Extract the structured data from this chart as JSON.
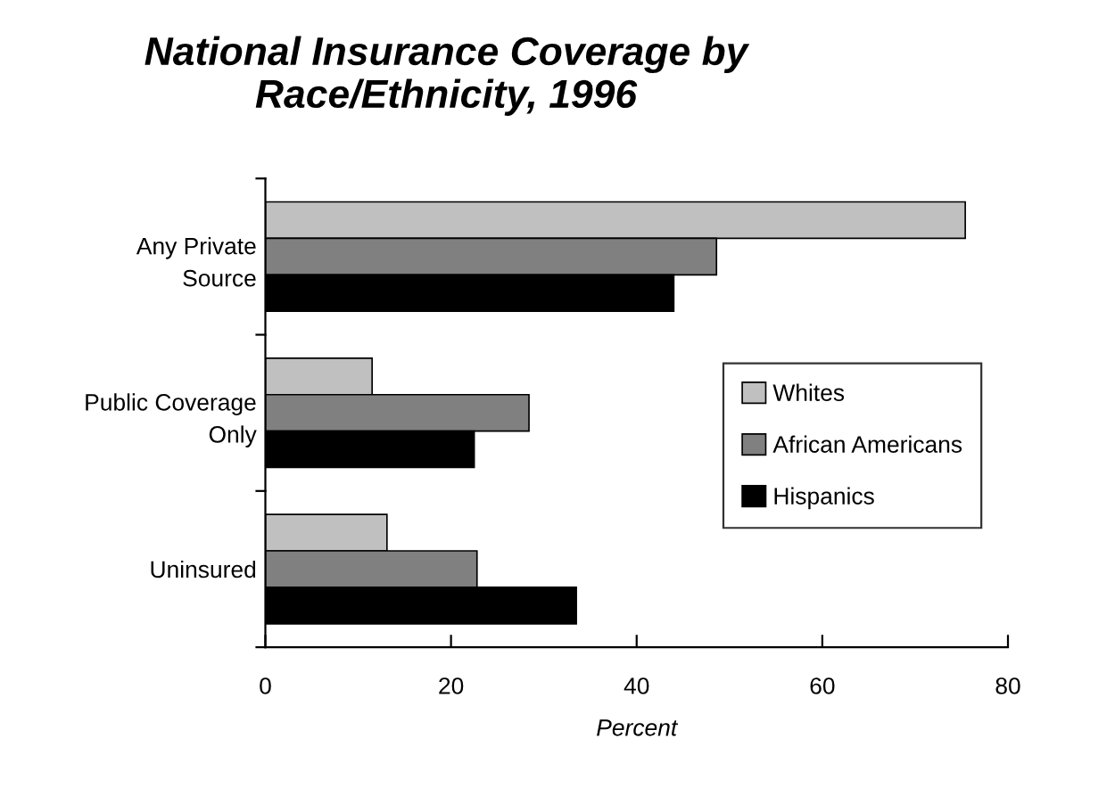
{
  "chart_data": {
    "type": "bar",
    "orientation": "horizontal",
    "title": "National Insurance Coverage by\nRace/Ethnicity, 1996",
    "xlabel": "Percent",
    "categories": [
      "Any Private\nSource",
      "Public Coverage\nOnly",
      "Uninsured"
    ],
    "series": [
      {
        "name": "Whites",
        "color": "#c0c0c0",
        "values": [
          75.4,
          11.5,
          13.1
        ]
      },
      {
        "name": "African Americans",
        "color": "#808080",
        "values": [
          48.6,
          28.4,
          22.8
        ]
      },
      {
        "name": "Hispanics",
        "color": "#000000",
        "values": [
          44.0,
          22.5,
          33.5
        ]
      }
    ],
    "xlim": [
      0,
      80
    ],
    "xticks": [
      0,
      20,
      40,
      60,
      80
    ],
    "grid": false,
    "legend": "right"
  }
}
